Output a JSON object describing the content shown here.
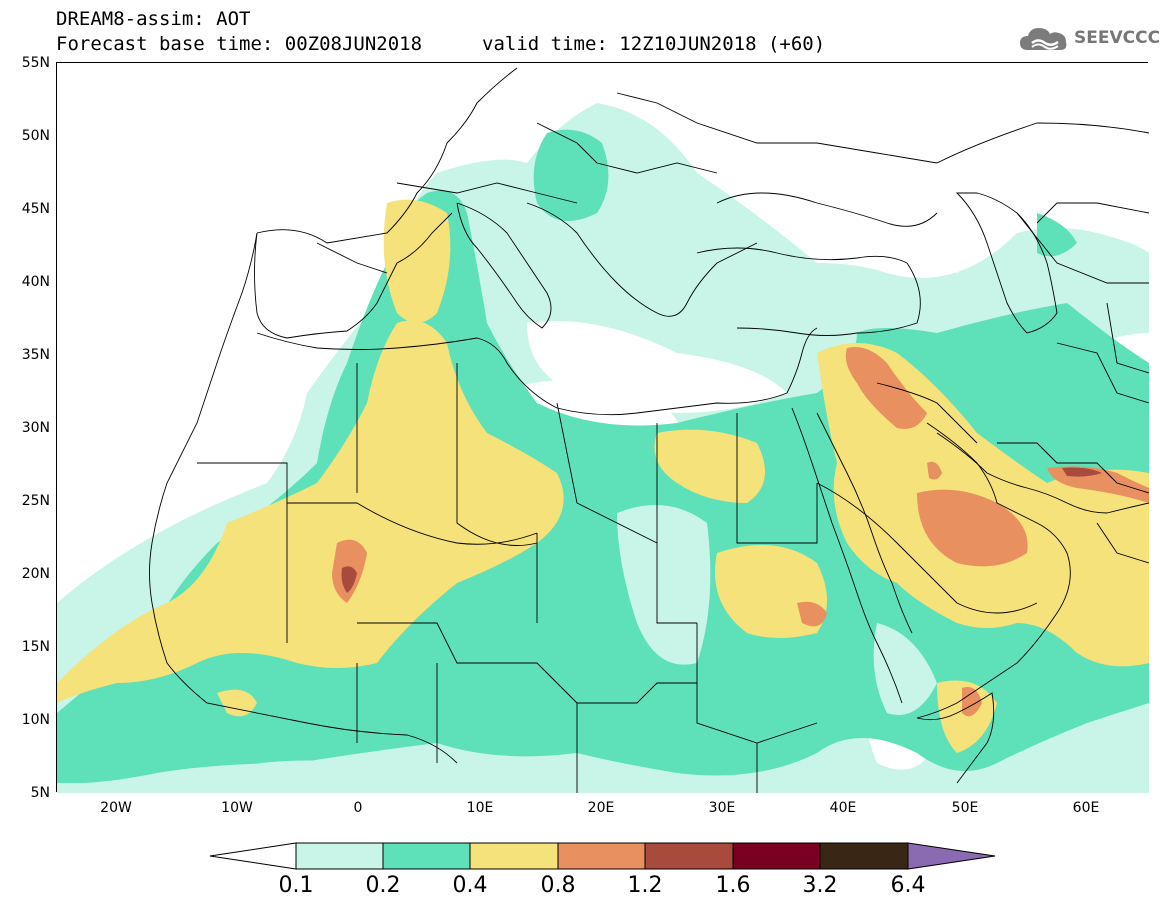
{
  "header": {
    "title_line1": "DREAM8-assim: AOT",
    "title_line2": "Forecast base time: 00Z08JUN2018",
    "valid_time": "valid time: 12Z10JUN2018 (+60)",
    "logo_text": "SEEVCCC"
  },
  "map": {
    "lat_labels": [
      "55N",
      "50N",
      "45N",
      "40N",
      "35N",
      "30N",
      "25N",
      "20N",
      "15N",
      "10N",
      "5N"
    ],
    "lon_labels": [
      "20W",
      "10W",
      "0",
      "10E",
      "20E",
      "30E",
      "40E",
      "50E",
      "60E"
    ],
    "extent": {
      "lon_min": -25,
      "lon_max": 65,
      "lat_min": 5,
      "lat_max": 55
    }
  },
  "legend": {
    "labels": [
      "0.1",
      "0.2",
      "0.4",
      "0.8",
      "1.2",
      "1.6",
      "3.2",
      "6.4"
    ],
    "colors": [
      "#ffffff",
      "#c8f5e8",
      "#5ee0b8",
      "#f5e27a",
      "#e89060",
      "#a84a3c",
      "#7a0020",
      "#3a2614",
      "#8a6ab0"
    ]
  }
}
